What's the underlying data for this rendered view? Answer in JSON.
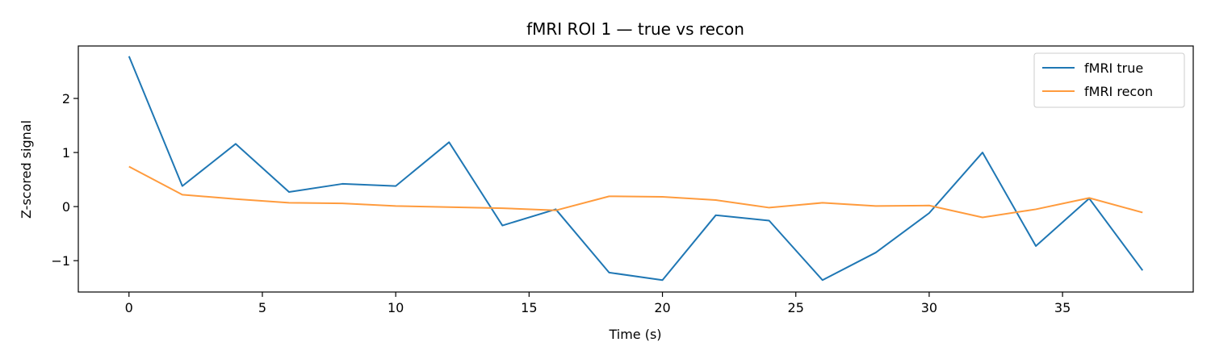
{
  "chart_data": {
    "type": "line",
    "title": "fMRI ROI 1 — true vs recon",
    "xlabel": "Time (s)",
    "ylabel": "Z-scored signal",
    "xlim": [
      -1.9,
      39.9
    ],
    "ylim": [
      -1.58,
      2.97
    ],
    "xticks": [
      0,
      5,
      10,
      15,
      20,
      25,
      30,
      35
    ],
    "yticks": [
      -1,
      0,
      1,
      2
    ],
    "grid": false,
    "legend_position": "top-right",
    "x": [
      0,
      2,
      4,
      6,
      8,
      10,
      12,
      14,
      16,
      18,
      20,
      22,
      24,
      26,
      28,
      30,
      32,
      34,
      36,
      38
    ],
    "series": [
      {
        "name": "fMRI true",
        "color": "#1f77b4",
        "values": [
          2.78,
          0.38,
          1.16,
          0.27,
          0.42,
          0.38,
          1.19,
          -0.35,
          -0.05,
          -1.22,
          -1.36,
          -0.16,
          -0.26,
          -1.36,
          -0.85,
          -0.12,
          1.0,
          -0.73,
          0.15,
          -1.18
        ]
      },
      {
        "name": "fMRI recon",
        "color": "#ff9b3d",
        "values": [
          0.74,
          0.22,
          0.14,
          0.07,
          0.06,
          0.01,
          -0.01,
          -0.03,
          -0.07,
          0.19,
          0.18,
          0.12,
          -0.02,
          0.07,
          0.01,
          0.02,
          -0.2,
          -0.05,
          0.16,
          -0.11
        ]
      }
    ]
  }
}
